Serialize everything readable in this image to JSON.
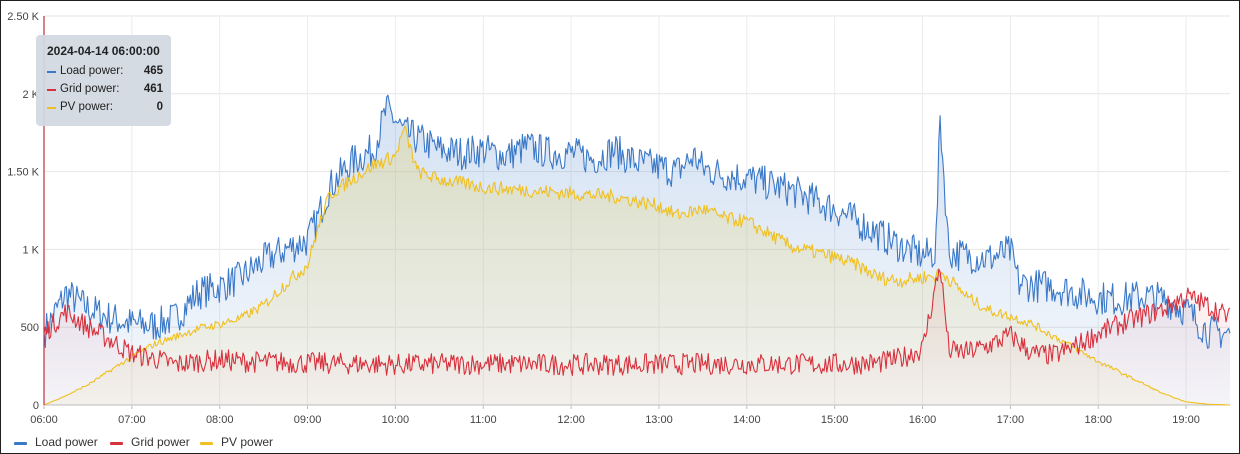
{
  "tooltip": {
    "time": "2024-04-14 06:00:00",
    "rows": [
      {
        "label": "Load power:",
        "value": "465",
        "color": "#3a78c8"
      },
      {
        "label": "Grid power:",
        "value": "461",
        "color": "#d8303c"
      },
      {
        "label": "PV power:",
        "value": "0",
        "color": "#f0c020"
      }
    ]
  },
  "legend": [
    {
      "label": "Load power",
      "color": "#3a78c8"
    },
    {
      "label": "Grid power",
      "color": "#d8303c"
    },
    {
      "label": "PV power",
      "color": "#f0c020"
    }
  ],
  "chart_data": {
    "type": "line",
    "title": "",
    "xlabel": "",
    "ylabel": "",
    "x_ticks": [
      "06:00",
      "07:00",
      "08:00",
      "09:00",
      "10:00",
      "11:00",
      "12:00",
      "13:00",
      "14:00",
      "15:00",
      "16:00",
      "17:00",
      "18:00",
      "19:00"
    ],
    "y_ticks": [
      "0",
      "500",
      "1 K",
      "1.50 K",
      "2 K",
      "2.50 K"
    ],
    "ylim": [
      0,
      2500
    ],
    "xlim_hours": [
      6.0,
      19.5
    ],
    "grid": true,
    "legend_position": "bottom-left",
    "cursor_x": "06:00",
    "series": [
      {
        "name": "Load power",
        "color": "#3a78c8",
        "x": [
          6.0,
          6.25,
          6.5,
          6.75,
          7.0,
          7.25,
          7.5,
          7.75,
          8.0,
          8.25,
          8.5,
          8.75,
          9.0,
          9.1,
          9.25,
          9.5,
          9.75,
          9.9,
          10.0,
          10.1,
          10.3,
          10.5,
          10.75,
          11.0,
          11.25,
          11.5,
          11.75,
          12.0,
          12.25,
          12.5,
          12.6,
          12.75,
          13.0,
          13.2,
          13.4,
          13.5,
          13.75,
          14.0,
          14.25,
          14.5,
          14.75,
          15.0,
          15.25,
          15.5,
          15.75,
          16.0,
          16.15,
          16.2,
          16.3,
          16.5,
          16.75,
          17.0,
          17.1,
          17.25,
          17.5,
          17.75,
          18.0,
          18.25,
          18.5,
          18.75,
          19.0,
          19.25,
          19.5
        ],
        "values": [
          465,
          720,
          620,
          560,
          520,
          510,
          560,
          720,
          760,
          820,
          930,
          1000,
          1060,
          1180,
          1400,
          1560,
          1640,
          1900,
          1830,
          1750,
          1700,
          1640,
          1620,
          1640,
          1600,
          1660,
          1620,
          1620,
          1580,
          1640,
          1600,
          1560,
          1530,
          1500,
          1600,
          1520,
          1480,
          1460,
          1420,
          1380,
          1320,
          1260,
          1180,
          1100,
          1020,
          960,
          980,
          1850,
          980,
          960,
          940,
          990,
          780,
          770,
          760,
          720,
          690,
          680,
          700,
          680,
          610,
          470,
          460
        ]
      },
      {
        "name": "Grid power",
        "color": "#d8303c",
        "x": [
          6.0,
          6.25,
          6.5,
          6.75,
          7.0,
          7.25,
          7.5,
          7.75,
          8.0,
          8.25,
          9.0,
          10.0,
          11.0,
          12.0,
          13.0,
          14.0,
          15.0,
          15.5,
          15.75,
          16.0,
          16.2,
          16.3,
          16.5,
          16.75,
          17.0,
          17.25,
          17.5,
          17.75,
          18.0,
          18.25,
          18.5,
          18.75,
          19.0,
          19.25,
          19.5
        ],
        "values": [
          461,
          600,
          500,
          420,
          330,
          300,
          260,
          280,
          290,
          280,
          270,
          260,
          265,
          260,
          262,
          265,
          262,
          270,
          300,
          360,
          900,
          350,
          340,
          380,
          450,
          330,
          320,
          380,
          460,
          520,
          570,
          620,
          700,
          640,
          560
        ]
      },
      {
        "name": "PV power",
        "color": "#f0c020",
        "x": [
          6.0,
          6.25,
          6.5,
          6.75,
          7.0,
          7.25,
          7.5,
          7.75,
          8.0,
          8.25,
          8.5,
          8.75,
          9.0,
          9.1,
          9.25,
          9.5,
          9.75,
          10.0,
          10.1,
          10.25,
          10.5,
          11.0,
          11.5,
          12.0,
          12.5,
          13.0,
          13.2,
          13.5,
          13.75,
          14.0,
          14.25,
          14.5,
          15.0,
          15.25,
          15.5,
          15.75,
          16.0,
          16.25,
          16.5,
          16.75,
          17.0,
          17.25,
          17.5,
          17.75,
          18.0,
          18.25,
          18.5,
          18.75,
          19.0,
          19.25,
          19.5
        ],
        "values": [
          0,
          60,
          130,
          220,
          310,
          390,
          440,
          490,
          520,
          560,
          640,
          780,
          900,
          1100,
          1350,
          1450,
          1540,
          1600,
          1780,
          1500,
          1450,
          1400,
          1380,
          1360,
          1340,
          1280,
          1220,
          1260,
          1200,
          1180,
          1100,
          1020,
          950,
          900,
          820,
          800,
          820,
          840,
          700,
          610,
          570,
          520,
          440,
          360,
          280,
          210,
          140,
          70,
          20,
          5,
          0
        ]
      }
    ]
  }
}
